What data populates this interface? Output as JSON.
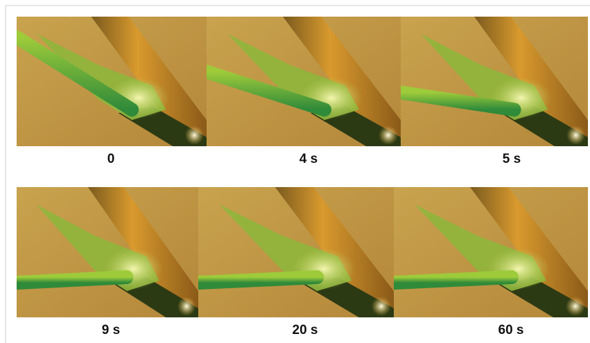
{
  "panels": [
    {
      "label": "0"
    },
    {
      "label": "4 s"
    },
    {
      "label": "5 s"
    },
    {
      "label": "9 s"
    },
    {
      "label": "20 s"
    },
    {
      "label": "60 s"
    }
  ]
}
